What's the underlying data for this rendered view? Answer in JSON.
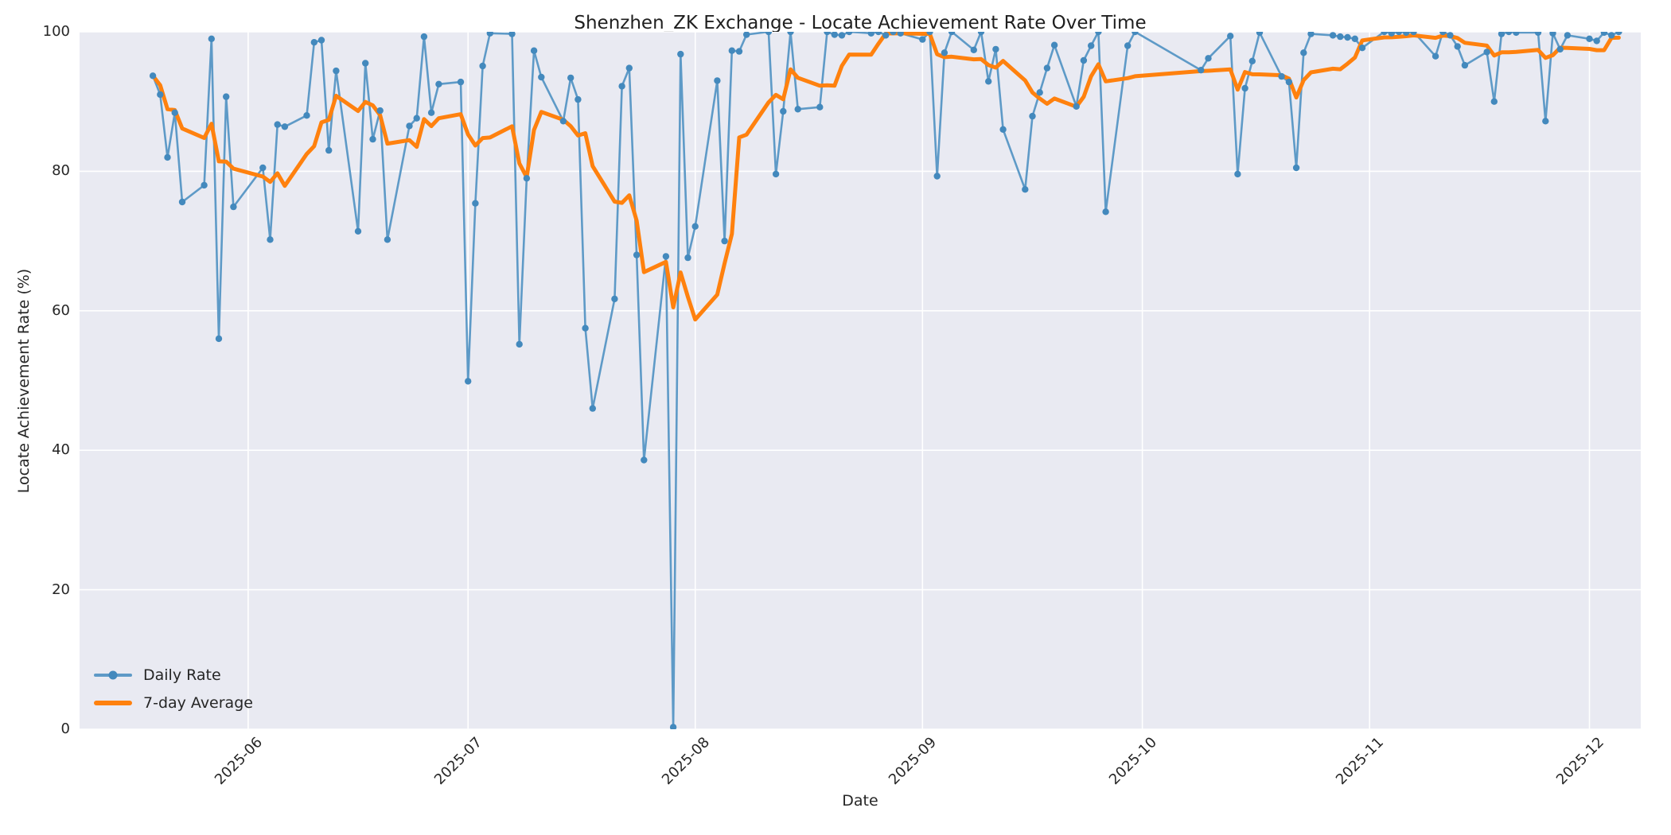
{
  "title": "Shenzhen_ZK Exchange - Locate Achievement Rate Over Time",
  "axes": {
    "xlabel": "Date",
    "ylabel": "Locate Achievement Rate (%)",
    "ylim": [
      0,
      100
    ],
    "yticks": [
      0,
      20,
      40,
      60,
      80,
      100
    ],
    "xticklabels": [
      "2025-06",
      "2025-07",
      "2025-08",
      "2025-09",
      "2025-10",
      "2025-11",
      "2025-12"
    ],
    "x_axis_start": "2025-05-09",
    "x_axis_end": "2025-12-08",
    "grid": true
  },
  "legend": {
    "position": "lower left",
    "entries": [
      {
        "label": "Daily Rate",
        "type": "line-with-marker"
      },
      {
        "label": "7-day Average",
        "type": "thick-line"
      }
    ]
  },
  "colors": {
    "figure_bg": "#ffffff",
    "axes_bg": "#e9eaf2",
    "grid": "#ffffff",
    "daily_line": "#5e9ac7",
    "daily_marker": "#4389bd",
    "average_line": "#ff810e",
    "text": "#262626"
  },
  "chart_data": {
    "type": "line",
    "title": "Shenzhen_ZK Exchange - Locate Achievement Rate Over Time",
    "xlabel": "Date",
    "ylabel": "Locate Achievement Rate (%)",
    "ylim": [
      0,
      100
    ],
    "legend_position": "lower left",
    "series": [
      {
        "name": "Daily Rate",
        "style": "solid line with circle markers",
        "dates": [
          "2025-05-19",
          "2025-05-20",
          "2025-05-21",
          "2025-05-22",
          "2025-05-23",
          "2025-05-26",
          "2025-05-27",
          "2025-05-28",
          "2025-05-29",
          "2025-05-30",
          "2025-06-03",
          "2025-06-04",
          "2025-06-05",
          "2025-06-06",
          "2025-06-09",
          "2025-06-10",
          "2025-06-11",
          "2025-06-12",
          "2025-06-13",
          "2025-06-16",
          "2025-06-17",
          "2025-06-18",
          "2025-06-19",
          "2025-06-20",
          "2025-06-23",
          "2025-06-24",
          "2025-06-25",
          "2025-06-26",
          "2025-06-27",
          "2025-06-30",
          "2025-07-01",
          "2025-07-02",
          "2025-07-03",
          "2025-07-04",
          "2025-07-07",
          "2025-07-08",
          "2025-07-09",
          "2025-07-10",
          "2025-07-11",
          "2025-07-14",
          "2025-07-15",
          "2025-07-16",
          "2025-07-17",
          "2025-07-18",
          "2025-07-21",
          "2025-07-22",
          "2025-07-23",
          "2025-07-24",
          "2025-07-25",
          "2025-07-28",
          "2025-07-29",
          "2025-07-30",
          "2025-07-31",
          "2025-08-01",
          "2025-08-04",
          "2025-08-05",
          "2025-08-06",
          "2025-08-07",
          "2025-08-08",
          "2025-08-11",
          "2025-08-12",
          "2025-08-13",
          "2025-08-14",
          "2025-08-15",
          "2025-08-18",
          "2025-08-19",
          "2025-08-20",
          "2025-08-21",
          "2025-08-22",
          "2025-08-25",
          "2025-08-26",
          "2025-08-27",
          "2025-08-28",
          "2025-08-29",
          "2025-09-01",
          "2025-09-02",
          "2025-09-03",
          "2025-09-04",
          "2025-09-05",
          "2025-09-08",
          "2025-09-09",
          "2025-09-10",
          "2025-09-11",
          "2025-09-12",
          "2025-09-15",
          "2025-09-16",
          "2025-09-17",
          "2025-09-18",
          "2025-09-19",
          "2025-09-22",
          "2025-09-23",
          "2025-09-24",
          "2025-09-25",
          "2025-09-26",
          "2025-09-29",
          "2025-09-30",
          "2025-10-09",
          "2025-10-10",
          "2025-10-13",
          "2025-10-14",
          "2025-10-15",
          "2025-10-16",
          "2025-10-17",
          "2025-10-20",
          "2025-10-21",
          "2025-10-22",
          "2025-10-23",
          "2025-10-24",
          "2025-10-27",
          "2025-10-28",
          "2025-10-29",
          "2025-10-30",
          "2025-10-31",
          "2025-11-03",
          "2025-11-04",
          "2025-11-05",
          "2025-11-06",
          "2025-11-07",
          "2025-11-10",
          "2025-11-11",
          "2025-11-12",
          "2025-11-13",
          "2025-11-14",
          "2025-11-17",
          "2025-11-18",
          "2025-11-19",
          "2025-11-20",
          "2025-11-21",
          "2025-11-24",
          "2025-11-25",
          "2025-11-26",
          "2025-11-27",
          "2025-11-28",
          "2025-12-01",
          "2025-12-02",
          "2025-12-03",
          "2025-12-04",
          "2025-12-05"
        ],
        "values": [
          93.7,
          91.0,
          82.0,
          88.4,
          75.6,
          78.0,
          99.0,
          56.0,
          90.7,
          74.9,
          80.5,
          70.2,
          86.7,
          86.4,
          88.0,
          98.5,
          98.8,
          83.0,
          94.4,
          71.4,
          95.5,
          84.6,
          88.7,
          70.2,
          86.5,
          87.6,
          99.3,
          88.4,
          92.5,
          92.8,
          49.9,
          75.4,
          95.1,
          99.8,
          99.7,
          55.2,
          79.0,
          97.3,
          93.5,
          87.2,
          93.4,
          90.3,
          57.5,
          46.0,
          61.7,
          92.2,
          94.8,
          68.0,
          38.6,
          67.8,
          0.3,
          96.8,
          67.6,
          72.1,
          93.0,
          70.0,
          97.3,
          97.2,
          99.6,
          100,
          79.6,
          88.6,
          100,
          88.9,
          89.2,
          100,
          99.6,
          99.5,
          100,
          99.8,
          100,
          99.5,
          100,
          99.8,
          98.9,
          100,
          79.3,
          97.0,
          100,
          97.4,
          100,
          92.9,
          97.5,
          86.0,
          77.4,
          87.9,
          91.3,
          94.8,
          98.1,
          89.3,
          95.9,
          98.0,
          100,
          74.2,
          98.0,
          100,
          94.5,
          96.2,
          99.4,
          79.6,
          91.9,
          95.8,
          99.9,
          93.6,
          92.8,
          80.5,
          97.0,
          99.7,
          99.5,
          99.3,
          99.2,
          99.0,
          97.7,
          100,
          99.8,
          100,
          99.9,
          100,
          96.5,
          100,
          99.5,
          97.9,
          95.2,
          97.1,
          90.0,
          99.7,
          100,
          99.9,
          99.9,
          87.2,
          99.8,
          97.5,
          99.5,
          99.0,
          98.7,
          99.9,
          99.5,
          100
        ]
      },
      {
        "name": "7-day Average",
        "style": "thick solid line",
        "derived": "rolling mean of Daily Rate over last 7 observations, min_periods=1"
      }
    ]
  }
}
